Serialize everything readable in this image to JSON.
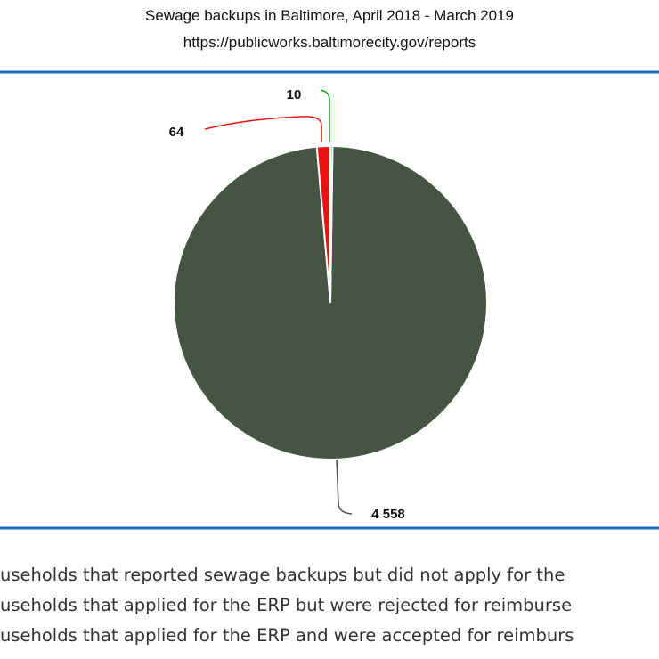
{
  "chart_data": {
    "type": "pie",
    "title": "Sewage backups in Baltimore, April 2018 - March 2019",
    "subtitle": "https://publicworks.baltimorecity.gov/reports",
    "categories": [
      "useholds that reported sewage backups but did not apply for the",
      "useholds that applied for the ERP but were rejected for reimburse",
      "useholds that applied for the ERP and were accepted for reimburs"
    ],
    "values": [
      4558,
      64,
      10
    ],
    "value_labels": [
      "4 558",
      "64",
      "10"
    ],
    "colors": [
      "#475443",
      "#ee1111",
      "#22aa22"
    ]
  }
}
